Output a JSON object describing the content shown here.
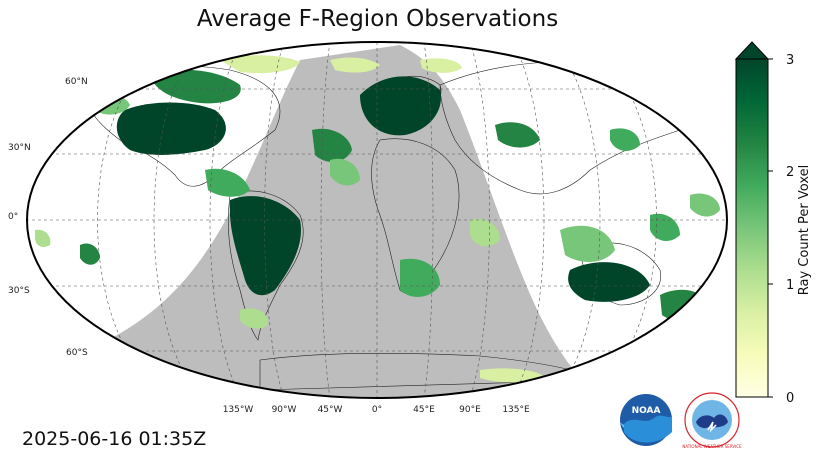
{
  "title": "Average F-Region Observations",
  "timestamp": "2025-06-16 01:35Z",
  "colorbar": {
    "label": "Ray Count Per Voxel",
    "ticks": [
      "0",
      "1",
      "2",
      "3"
    ],
    "min": 0,
    "max": 3,
    "extend": "max",
    "colormap": "YlGn",
    "colors": [
      "#ffffe5",
      "#f7fcb9",
      "#d9f0a3",
      "#addd8e",
      "#78c679",
      "#41ab5d",
      "#238443",
      "#006837",
      "#004529"
    ]
  },
  "map": {
    "projection": "robinson",
    "night_shade_color": "#bdbdbd",
    "lat_labels": [
      "60°N",
      "30°N",
      "0°",
      "30°S",
      "60°S"
    ],
    "lon_labels": [
      "135°W",
      "90°W",
      "45°W",
      "0°",
      "45°E",
      "90°E",
      "135°E"
    ]
  },
  "logos": {
    "noaa": "NOAA",
    "nws": "NATIONAL WEATHER SERVICE"
  }
}
